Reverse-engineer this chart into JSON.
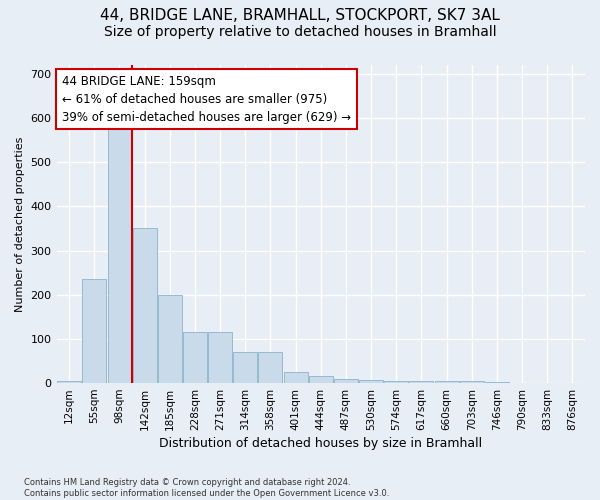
{
  "title_line1": "44, BRIDGE LANE, BRAMHALL, STOCKPORT, SK7 3AL",
  "title_line2": "Size of property relative to detached houses in Bramhall",
  "xlabel": "Distribution of detached houses by size in Bramhall",
  "ylabel": "Number of detached properties",
  "footnote": "Contains HM Land Registry data © Crown copyright and database right 2024.\nContains public sector information licensed under the Open Government Licence v3.0.",
  "categories": [
    "12sqm",
    "55sqm",
    "98sqm",
    "142sqm",
    "185sqm",
    "228sqm",
    "271sqm",
    "314sqm",
    "358sqm",
    "401sqm",
    "444sqm",
    "487sqm",
    "530sqm",
    "574sqm",
    "617sqm",
    "660sqm",
    "703sqm",
    "746sqm",
    "790sqm",
    "833sqm",
    "876sqm"
  ],
  "bar_values": [
    5,
    235,
    580,
    350,
    200,
    115,
    115,
    70,
    70,
    25,
    15,
    10,
    6,
    4,
    5,
    4,
    4,
    3,
    1,
    1,
    1
  ],
  "bar_color": "#c9daea",
  "bar_edge_color": "#8ab4cc",
  "vline_color": "#cc0000",
  "vline_x_index": 3,
  "annotation_box_text": "44 BRIDGE LANE: 159sqm\n← 61% of detached houses are smaller (975)\n39% of semi-detached houses are larger (629) →",
  "annotation_box_color": "#cc0000",
  "annotation_text_size": 8.5,
  "ylim": [
    0,
    720
  ],
  "yticks": [
    0,
    100,
    200,
    300,
    400,
    500,
    600,
    700
  ],
  "bg_color": "#e8eef5",
  "plot_bg_color": "#e8eef5",
  "grid_color": "#ffffff",
  "title1_fontsize": 11,
  "title2_fontsize": 10,
  "ylabel_fontsize": 8,
  "xlabel_fontsize": 9
}
